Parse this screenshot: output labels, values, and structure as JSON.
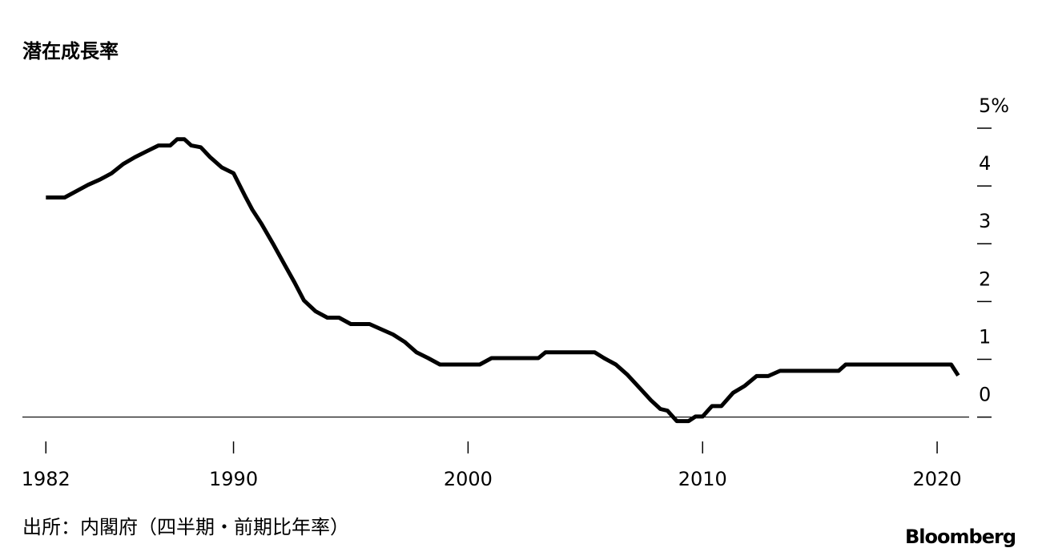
{
  "chart_data": {
    "type": "line",
    "title": "潜在成長率",
    "source": "出所：内閣府（四半期・前期比年率）",
    "brand": "Bloomberg",
    "x": [
      1982.0,
      1982.8,
      1983.3,
      1983.8,
      1984.3,
      1984.8,
      1985.3,
      1985.8,
      1986.3,
      1986.8,
      1987.3,
      1987.6,
      1987.9,
      1988.2,
      1988.6,
      1989.0,
      1989.5,
      1990.0,
      1990.5,
      1990.8,
      1991.2,
      1991.7,
      1992.2,
      1992.6,
      1993.0,
      1993.5,
      1994.0,
      1994.5,
      1995.0,
      1995.8,
      1996.3,
      1996.8,
      1997.3,
      1997.8,
      1998.3,
      1998.8,
      2000.5,
      2001.0,
      2003.0,
      2003.3,
      2005.4,
      2005.8,
      2006.3,
      2006.8,
      2007.3,
      2007.8,
      2008.2,
      2008.5,
      2008.9,
      2009.4,
      2009.7,
      2010.0,
      2010.4,
      2010.8,
      2011.3,
      2011.8,
      2012.3,
      2012.8,
      2013.3,
      2015.8,
      2016.1,
      2020.6,
      2020.9
    ],
    "series": [
      {
        "name": "潜在成長率",
        "color": "#000000",
        "values": [
          3.8,
          3.8,
          3.91,
          4.02,
          4.11,
          4.22,
          4.38,
          4.5,
          4.6,
          4.7,
          4.7,
          4.81,
          4.81,
          4.7,
          4.67,
          4.5,
          4.32,
          4.22,
          3.82,
          3.59,
          3.34,
          2.99,
          2.62,
          2.33,
          2.02,
          1.83,
          1.72,
          1.72,
          1.61,
          1.61,
          1.52,
          1.43,
          1.3,
          1.12,
          1.02,
          0.91,
          0.91,
          1.02,
          1.02,
          1.12,
          1.12,
          1.02,
          0.91,
          0.73,
          0.51,
          0.29,
          0.14,
          0.11,
          -0.07,
          -0.07,
          0.01,
          0.01,
          0.19,
          0.19,
          0.42,
          0.54,
          0.71,
          0.71,
          0.8,
          0.8,
          0.91,
          0.91,
          0.72
        ]
      }
    ],
    "xlim": [
      1981,
      2021.5
    ],
    "xticks": [
      1982,
      1990,
      2000,
      2010,
      2020
    ],
    "ylim": [
      -0.2,
      5
    ],
    "yticks": [
      0,
      1,
      2,
      3,
      4,
      {
        "value": 5,
        "label": "5%"
      }
    ]
  }
}
